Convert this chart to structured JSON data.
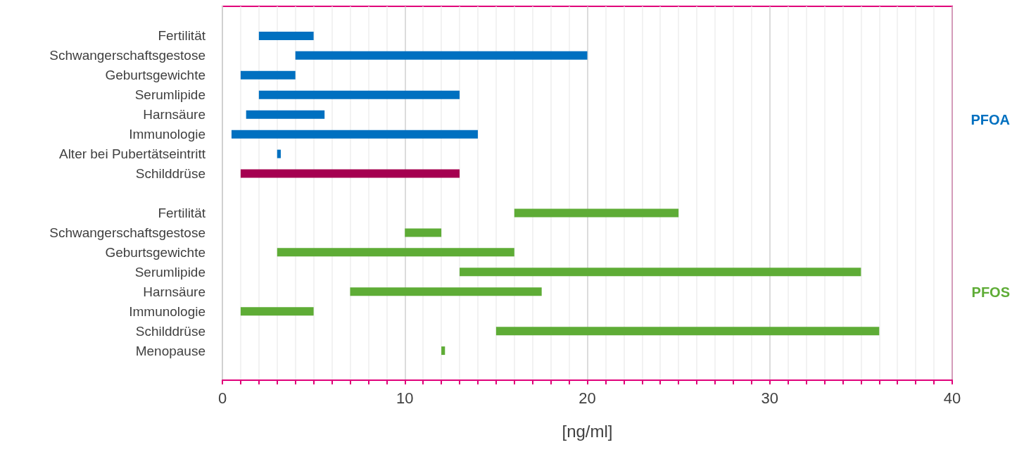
{
  "chart_data": {
    "type": "bar",
    "orientation": "horizontal",
    "xlabel": "[ng/ml]",
    "categories": [
      null,
      "Fertilität",
      "Schwangerschaftsgestose",
      "Geburtsgewichte",
      "Serumlipide",
      "Harnsäure",
      "Immunologie",
      "Alter bei Pubertätseintritt",
      "Schilddrüse",
      null,
      "Fertilität",
      "Schwangerschaftsgestose",
      "Geburtsgewichte",
      "Serumlipide",
      "Harnsäure",
      "Immunologie",
      "Schilddrüse",
      "Menopause",
      null
    ],
    "base": [
      null,
      2,
      4,
      1,
      2,
      1.3,
      0.5,
      3.0,
      1,
      null,
      16,
      10,
      3,
      13,
      7,
      1,
      15,
      12.0,
      null
    ],
    "values": [
      null,
      3,
      16,
      3,
      11,
      4.3,
      13.5,
      0.2,
      12,
      null,
      9,
      2,
      13,
      22,
      10.5,
      4,
      21,
      0.2,
      null
    ],
    "colors": [
      null,
      "#0070c0",
      "#0070c0",
      "#0070c0",
      "#0070c0",
      "#0070c0",
      "#0070c0",
      "#0070c0",
      "#a50050",
      null,
      "#5eac36",
      "#5eac36",
      "#5eac36",
      "#5eac36",
      "#5eac36",
      "#5eac36",
      "#5eac36",
      "#5eac36",
      null
    ],
    "xlim": [
      0,
      40
    ],
    "xticks": [
      0,
      {
        "value": 1,
        "label": null
      },
      {
        "value": 2,
        "label": null
      },
      {
        "value": 3,
        "label": null
      },
      {
        "value": 4,
        "label": null
      },
      {
        "value": 5,
        "label": null
      },
      {
        "value": 6,
        "label": null
      },
      {
        "value": 7,
        "label": null
      },
      {
        "value": 8,
        "label": null
      },
      {
        "value": 9,
        "label": null
      },
      10,
      {
        "value": 11,
        "label": null
      },
      {
        "value": 12,
        "label": null
      },
      {
        "value": 13,
        "label": null
      },
      {
        "value": 14,
        "label": null
      },
      {
        "value": 15,
        "label": null
      },
      {
        "value": 16,
        "label": null
      },
      {
        "value": 17,
        "label": null
      },
      {
        "value": 18,
        "label": null
      },
      {
        "value": 19,
        "label": null
      },
      20,
      {
        "value": 21,
        "label": null
      },
      {
        "value": 22,
        "label": null
      },
      {
        "value": 23,
        "label": null
      },
      {
        "value": 24,
        "label": null
      },
      {
        "value": 25,
        "label": null
      },
      {
        "value": 26,
        "label": null
      },
      {
        "value": 27,
        "label": null
      },
      {
        "value": 28,
        "label": null
      },
      {
        "value": 29,
        "label": null
      },
      30,
      {
        "value": 31,
        "label": null
      },
      {
        "value": 32,
        "label": null
      },
      {
        "value": 33,
        "label": null
      },
      {
        "value": 34,
        "label": null
      },
      {
        "value": 35,
        "label": null
      },
      {
        "value": 36,
        "label": null
      },
      {
        "value": 37,
        "label": null
      },
      {
        "value": 38,
        "label": null
      },
      {
        "value": 39,
        "label": null
      },
      40
    ],
    "grid": "x",
    "annotations": [
      "PFOA",
      "PFOS"
    ]
  }
}
